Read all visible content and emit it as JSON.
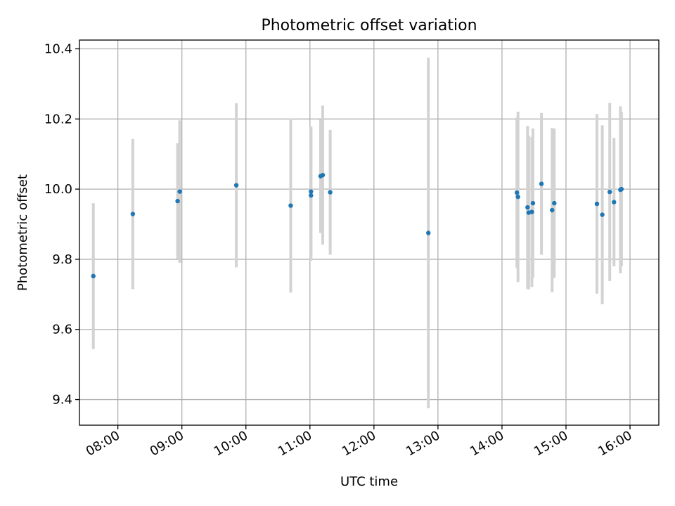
{
  "chart_data": {
    "type": "scatter",
    "title": "Photometric offset variation",
    "xlabel": "UTC time",
    "ylabel": "Photometric offset",
    "x_axis_type": "time",
    "xlim": [
      "07:24",
      "16:27"
    ],
    "ylim": [
      9.327,
      10.425
    ],
    "x_ticks": [
      "08:00",
      "09:00",
      "10:00",
      "11:00",
      "12:00",
      "13:00",
      "14:00",
      "15:00",
      "16:00"
    ],
    "y_ticks": [
      "9.4",
      "9.6",
      "9.8",
      "10.0",
      "10.2",
      "10.4"
    ],
    "grid": true,
    "legend": "none",
    "colors": {
      "point": "#1f77b4",
      "errorbar": "#d3d3d3",
      "grid": "#b0b0b0"
    },
    "points": [
      {
        "x": "07:37",
        "y": 9.752,
        "yerr": 0.208
      },
      {
        "x": "08:14",
        "y": 9.929,
        "yerr": 0.214
      },
      {
        "x": "08:56",
        "y": 9.966,
        "yerr": 0.165
      },
      {
        "x": "08:58",
        "y": 9.993,
        "yerr": 0.203
      },
      {
        "x": "09:51",
        "y": 10.011,
        "yerr": 0.234
      },
      {
        "x": "10:42",
        "y": 9.953,
        "yerr": 0.248
      },
      {
        "x": "11:01",
        "y": 9.982,
        "yerr": 0.186
      },
      {
        "x": "11:01",
        "y": 9.993,
        "yerr": 0.186
      },
      {
        "x": "11:10",
        "y": 10.037,
        "yerr": 0.162
      },
      {
        "x": "11:12",
        "y": 10.04,
        "yerr": 0.198
      },
      {
        "x": "11:19",
        "y": 9.991,
        "yerr": 0.178
      },
      {
        "x": "12:51",
        "y": 9.875,
        "yerr": 0.5
      },
      {
        "x": "14:14",
        "y": 9.99,
        "yerr": 0.214
      },
      {
        "x": "14:15",
        "y": 9.978,
        "yerr": 0.243
      },
      {
        "x": "14:24",
        "y": 9.948,
        "yerr": 0.232
      },
      {
        "x": "14:25",
        "y": 9.933,
        "yerr": 0.219
      },
      {
        "x": "14:28",
        "y": 9.935,
        "yerr": 0.214
      },
      {
        "x": "14:29",
        "y": 9.96,
        "yerr": 0.213
      },
      {
        "x": "14:37",
        "y": 10.015,
        "yerr": 0.202
      },
      {
        "x": "14:47",
        "y": 9.94,
        "yerr": 0.234
      },
      {
        "x": "14:49",
        "y": 9.96,
        "yerr": 0.213
      },
      {
        "x": "15:29",
        "y": 9.958,
        "yerr": 0.256
      },
      {
        "x": "15:34",
        "y": 9.927,
        "yerr": 0.255
      },
      {
        "x": "15:41",
        "y": 9.992,
        "yerr": 0.254
      },
      {
        "x": "15:45",
        "y": 9.963,
        "yerr": 0.183
      },
      {
        "x": "15:51",
        "y": 9.998,
        "yerr": 0.238
      },
      {
        "x": "15:52",
        "y": 10.0,
        "yerr": 0.22
      }
    ]
  }
}
